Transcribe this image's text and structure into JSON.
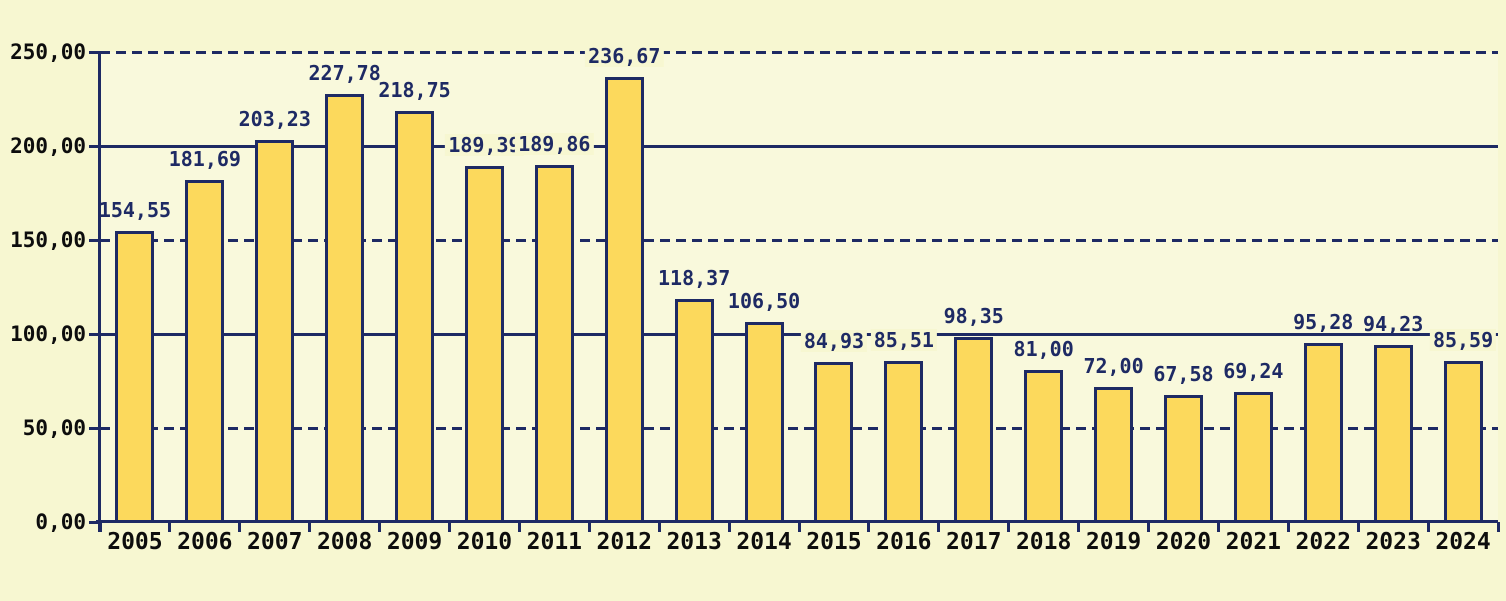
{
  "chart_data": {
    "type": "bar",
    "title": "",
    "xlabel": "",
    "ylabel": "",
    "categories": [
      "2005",
      "2006",
      "2007",
      "2008",
      "2009",
      "2010",
      "2011",
      "2012",
      "2013",
      "2014",
      "2015",
      "2016",
      "2017",
      "2018",
      "2019",
      "2020",
      "2021",
      "2022",
      "2023",
      "2024"
    ],
    "values": [
      154.55,
      181.69,
      203.23,
      227.78,
      218.75,
      189.39,
      189.86,
      236.67,
      118.37,
      106.5,
      84.93,
      85.51,
      98.35,
      81.0,
      72.0,
      67.58,
      69.24,
      95.28,
      94.23,
      85.59
    ],
    "value_labels": [
      "154,55",
      "181,69",
      "203,23",
      "227,78",
      "218,75",
      "189,39",
      "189,86",
      "236,67",
      "118,37",
      "106,50",
      "84,93",
      "85,51",
      "98,35",
      "81,00",
      "72,00",
      "67,58",
      "69,24",
      "95,28",
      "94,23",
      "85,59"
    ],
    "ylim": [
      0,
      250
    ],
    "ytick_values": [
      0,
      50,
      100,
      150,
      200,
      250
    ],
    "ytick_labels": [
      "0,00",
      "50,00",
      "100,00",
      "150,00",
      "200,00",
      "250,00"
    ],
    "grid": {
      "solid_levels": [
        100,
        200
      ],
      "dashed_levels": [
        50,
        150,
        250
      ],
      "legend_position": "none"
    },
    "colors": {
      "background": "#f7f7d1",
      "bar_fill": "#fcd95c",
      "line": "#1e2a64",
      "value_label": "#1e2a64",
      "axis_label": "#0d0d0d"
    }
  }
}
